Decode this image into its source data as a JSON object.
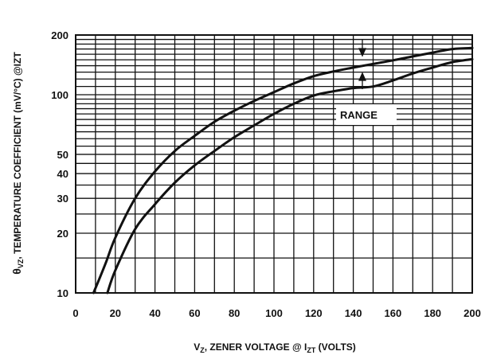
{
  "chart_data": {
    "type": "line",
    "xlabel": {
      "main_pre": "V",
      "main_sub": "Z",
      "main_mid": ", ZENER VOLTAGE @ I",
      "main_sub2": "ZT",
      "main_post": " (VOLTS)"
    },
    "ylabel": {
      "pre": "θ",
      "sub": "VZ",
      "post": ", TEMPERATURE COEFFICIENT (mV/°C) @IZT"
    },
    "xlim": [
      0,
      200
    ],
    "ylim": [
      10,
      200
    ],
    "y_scale": "log",
    "x_ticks": [
      "0",
      "20",
      "40",
      "60",
      "80",
      "100",
      "120",
      "140",
      "160",
      "180",
      "200"
    ],
    "y_ticks": [
      {
        "value": 10,
        "label": "10"
      },
      {
        "value": 20,
        "label": "20"
      },
      {
        "value": 30,
        "label": "30"
      },
      {
        "value": 40,
        "label": "40"
      },
      {
        "value": 50,
        "label": "50"
      },
      {
        "value": 100,
        "label": "100"
      },
      {
        "value": 200,
        "label": "200"
      }
    ],
    "grid": true,
    "annotation": "RANGE",
    "series": [
      {
        "values": [
          [
            9,
            10
          ],
          [
            15,
            14
          ],
          [
            20,
            19
          ],
          [
            30,
            30
          ],
          [
            40,
            41
          ],
          [
            50,
            52
          ],
          [
            60,
            62
          ],
          [
            70,
            73
          ],
          [
            80,
            83
          ],
          [
            90,
            93
          ],
          [
            100,
            103
          ],
          [
            110,
            114
          ],
          [
            120,
            124
          ],
          [
            130,
            131
          ],
          [
            140,
            137
          ],
          [
            150,
            143
          ],
          [
            160,
            149
          ],
          [
            170,
            156
          ],
          [
            180,
            163
          ],
          [
            190,
            170
          ],
          [
            200,
            172
          ]
        ]
      },
      {
        "values": [
          [
            16,
            10
          ],
          [
            20,
            13
          ],
          [
            30,
            21
          ],
          [
            40,
            28
          ],
          [
            50,
            36
          ],
          [
            60,
            44
          ],
          [
            70,
            52
          ],
          [
            80,
            61
          ],
          [
            90,
            70
          ],
          [
            100,
            80
          ],
          [
            110,
            90
          ],
          [
            120,
            99
          ],
          [
            130,
            104
          ],
          [
            140,
            108
          ],
          [
            150,
            110
          ],
          [
            160,
            118
          ],
          [
            170,
            128
          ],
          [
            180,
            137
          ],
          [
            190,
            146
          ],
          [
            200,
            151
          ]
        ]
      }
    ]
  }
}
